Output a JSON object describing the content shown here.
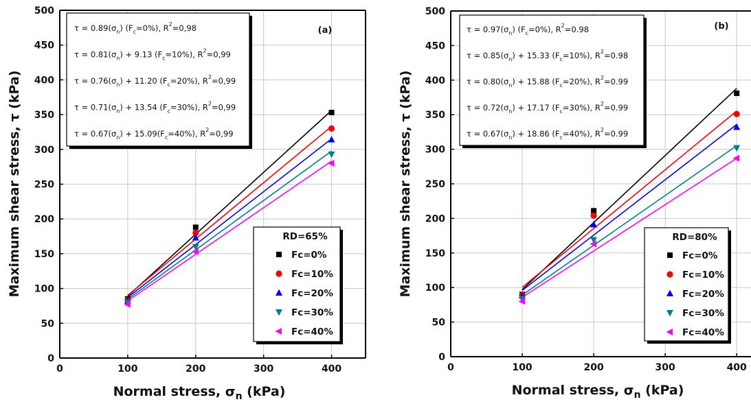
{
  "chart_data": [
    {
      "type": "scatter",
      "panel_label": "(a)",
      "xlabel": "Normal stress, σn (kPa)",
      "ylabel": "Maximum shear stress, τ (kPa)",
      "xlim": [
        0,
        450
      ],
      "ylim": [
        0,
        500
      ],
      "xticks": [
        0,
        100,
        200,
        300,
        400
      ],
      "yticks": [
        0,
        50,
        100,
        150,
        200,
        250,
        300,
        350,
        400,
        450,
        500
      ],
      "grid": true,
      "legend_title": "RD=65%",
      "legend_position": "bottom-right",
      "x": [
        100,
        200,
        400
      ],
      "series": [
        {
          "name": "Fc=0%",
          "color": "#000000",
          "marker": "square",
          "values": [
            85,
            188,
            353
          ],
          "fit": {
            "slope": 0.89,
            "intercept": 0.0
          }
        },
        {
          "name": "Fc=10%",
          "color": "#ff0000",
          "marker": "circle",
          "values": [
            83,
            180,
            330
          ],
          "fit": {
            "slope": 0.81,
            "intercept": 9.13
          }
        },
        {
          "name": "Fc=20%",
          "color": "#0000ff",
          "marker": "triangle-up",
          "values": [
            82,
            173,
            314
          ],
          "fit": {
            "slope": 0.76,
            "intercept": 11.2
          }
        },
        {
          "name": "Fc=30%",
          "color": "#008080",
          "marker": "triangle-down",
          "values": [
            80,
            160,
            293
          ],
          "fit": {
            "slope": 0.71,
            "intercept": 13.54
          }
        },
        {
          "name": "Fc=40%",
          "color": "#ff00ff",
          "marker": "triangle-left",
          "values": [
            77,
            153,
            280
          ],
          "fit": {
            "slope": 0.67,
            "intercept": 15.09
          }
        }
      ],
      "annotations": [
        {
          "text_main": "τ = 0.89(σ",
          "sub1": "n",
          "mid": ")  (F",
          "sub2": "c",
          "tail": "=0%), R",
          "sup": "2",
          "end": "=0,98"
        },
        {
          "text_main": "τ = 0.81(σ",
          "sub1": "n",
          "mid": ")  + 9.13 (F",
          "sub2": "c",
          "tail": "=10%), R",
          "sup": "2",
          "end": "=0,99"
        },
        {
          "text_main": "τ = 0.76(σ",
          "sub1": "n",
          "mid": ") + 11.20 (F",
          "sub2": "c",
          "tail": "=20%), R",
          "sup": "2",
          "end": "=0,99"
        },
        {
          "text_main": "τ = 0.71(σ",
          "sub1": "n",
          "mid": ") + 13.54 (F",
          "sub2": "c",
          "tail": "=30%), R",
          "sup": "2",
          "end": "=0,99"
        },
        {
          "text_main": "τ  = 0.67(σ",
          "sub1": "n",
          "mid": ")  + 15.09(F",
          "sub2": "c",
          "tail": "=40%), R",
          "sup": "2",
          "end": "=0,99"
        }
      ]
    },
    {
      "type": "scatter",
      "panel_label": "(b)",
      "xlabel": "Normal stress, σn (kPa)",
      "ylabel": "Maximum shear stress, τ (kPa)",
      "xlim": [
        0,
        420
      ],
      "ylim": [
        0,
        500
      ],
      "xticks": [
        0,
        100,
        200,
        300,
        400
      ],
      "yticks": [
        0,
        50,
        100,
        150,
        200,
        250,
        300,
        350,
        400,
        450,
        500
      ],
      "grid": true,
      "legend_title": "RD=80%",
      "legend_position": "bottom-right",
      "x": [
        100,
        200,
        400
      ],
      "series": [
        {
          "name": "Fc=0%",
          "color": "#000000",
          "marker": "square",
          "values": [
            90,
            211,
            381
          ],
          "fit": {
            "slope": 0.97,
            "intercept": 0.0
          }
        },
        {
          "name": "Fc=10%",
          "color": "#ff0000",
          "marker": "circle",
          "values": [
            89,
            204,
            351
          ],
          "fit": {
            "slope": 0.85,
            "intercept": 15.33
          }
        },
        {
          "name": "Fc=20%",
          "color": "#0000ff",
          "marker": "triangle-up",
          "values": [
            88,
            191,
            332
          ],
          "fit": {
            "slope": 0.8,
            "intercept": 15.88
          }
        },
        {
          "name": "Fc=30%",
          "color": "#008080",
          "marker": "triangle-down",
          "values": [
            84,
            169,
            302
          ],
          "fit": {
            "slope": 0.72,
            "intercept": 17.17
          }
        },
        {
          "name": "Fc=40%",
          "color": "#ff00ff",
          "marker": "triangle-left",
          "values": [
            80,
            163,
            287
          ],
          "fit": {
            "slope": 0.67,
            "intercept": 18.86
          }
        }
      ],
      "annotations": [
        {
          "text_main": "τ = 0.97(σ",
          "sub1": "n",
          "mid": ") (F",
          "sub2": "c",
          "tail": "=0%), R",
          "sup": "2",
          "end": "=0.98"
        },
        {
          "text_main": "τ = 0.85(σ",
          "sub1": "n",
          "mid": ") + 15.33 (F",
          "sub2": "c",
          "tail": "=10%), R",
          "sup": "2",
          "end": "=0.98"
        },
        {
          "text_main": "τ = 0.80(σ",
          "sub1": "n",
          "mid": ")  + 15.88 (F",
          "sub2": "c",
          "tail": "=20%), R",
          "sup": "2",
          "end": "=0.99"
        },
        {
          "text_main": "τ = 0.72(σ",
          "sub1": "n",
          "mid": ") + 17.17 (F",
          "sub2": "c",
          "tail": "=30%), R",
          "sup": "2",
          "end": "=0.99"
        },
        {
          "text_main": "τ  = 0.67(σ",
          "sub1": "n",
          "mid": ")  + 18.86 (F",
          "sub2": "c",
          "tail": "=40%), R",
          "sup": "2",
          "end": "=0.99"
        }
      ]
    }
  ]
}
